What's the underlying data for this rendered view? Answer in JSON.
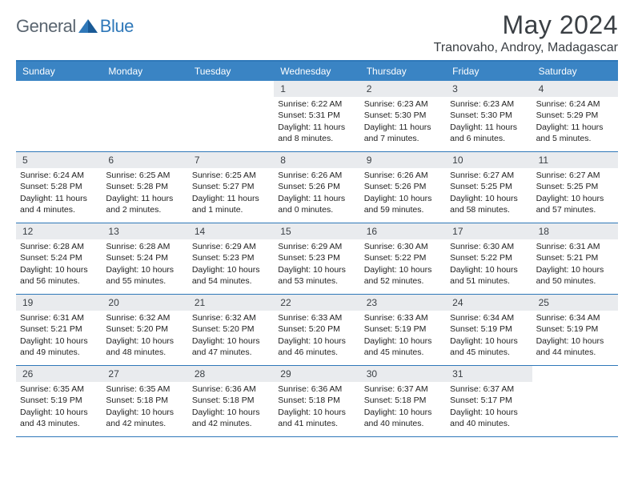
{
  "brand": {
    "general": "General",
    "blue": "Blue"
  },
  "title": "May 2024",
  "location": "Tranovaho, Androy, Madagascar",
  "dow": [
    "Sunday",
    "Monday",
    "Tuesday",
    "Wednesday",
    "Thursday",
    "Friday",
    "Saturday"
  ],
  "colors": {
    "accent": "#2f78b9",
    "header_bg": "#3a84c4",
    "daynum_bg": "#e9ebee",
    "text": "#3a3f44"
  },
  "weeks": [
    [
      {
        "blank": true
      },
      {
        "blank": true
      },
      {
        "blank": true
      },
      {
        "day": "1",
        "sunrise": "Sunrise: 6:22 AM",
        "sunset": "Sunset: 5:31 PM",
        "daylight": "Daylight: 11 hours and 8 minutes."
      },
      {
        "day": "2",
        "sunrise": "Sunrise: 6:23 AM",
        "sunset": "Sunset: 5:30 PM",
        "daylight": "Daylight: 11 hours and 7 minutes."
      },
      {
        "day": "3",
        "sunrise": "Sunrise: 6:23 AM",
        "sunset": "Sunset: 5:30 PM",
        "daylight": "Daylight: 11 hours and 6 minutes."
      },
      {
        "day": "4",
        "sunrise": "Sunrise: 6:24 AM",
        "sunset": "Sunset: 5:29 PM",
        "daylight": "Daylight: 11 hours and 5 minutes."
      }
    ],
    [
      {
        "day": "5",
        "sunrise": "Sunrise: 6:24 AM",
        "sunset": "Sunset: 5:28 PM",
        "daylight": "Daylight: 11 hours and 4 minutes."
      },
      {
        "day": "6",
        "sunrise": "Sunrise: 6:25 AM",
        "sunset": "Sunset: 5:28 PM",
        "daylight": "Daylight: 11 hours and 2 minutes."
      },
      {
        "day": "7",
        "sunrise": "Sunrise: 6:25 AM",
        "sunset": "Sunset: 5:27 PM",
        "daylight": "Daylight: 11 hours and 1 minute."
      },
      {
        "day": "8",
        "sunrise": "Sunrise: 6:26 AM",
        "sunset": "Sunset: 5:26 PM",
        "daylight": "Daylight: 11 hours and 0 minutes."
      },
      {
        "day": "9",
        "sunrise": "Sunrise: 6:26 AM",
        "sunset": "Sunset: 5:26 PM",
        "daylight": "Daylight: 10 hours and 59 minutes."
      },
      {
        "day": "10",
        "sunrise": "Sunrise: 6:27 AM",
        "sunset": "Sunset: 5:25 PM",
        "daylight": "Daylight: 10 hours and 58 minutes."
      },
      {
        "day": "11",
        "sunrise": "Sunrise: 6:27 AM",
        "sunset": "Sunset: 5:25 PM",
        "daylight": "Daylight: 10 hours and 57 minutes."
      }
    ],
    [
      {
        "day": "12",
        "sunrise": "Sunrise: 6:28 AM",
        "sunset": "Sunset: 5:24 PM",
        "daylight": "Daylight: 10 hours and 56 minutes."
      },
      {
        "day": "13",
        "sunrise": "Sunrise: 6:28 AM",
        "sunset": "Sunset: 5:24 PM",
        "daylight": "Daylight: 10 hours and 55 minutes."
      },
      {
        "day": "14",
        "sunrise": "Sunrise: 6:29 AM",
        "sunset": "Sunset: 5:23 PM",
        "daylight": "Daylight: 10 hours and 54 minutes."
      },
      {
        "day": "15",
        "sunrise": "Sunrise: 6:29 AM",
        "sunset": "Sunset: 5:23 PM",
        "daylight": "Daylight: 10 hours and 53 minutes."
      },
      {
        "day": "16",
        "sunrise": "Sunrise: 6:30 AM",
        "sunset": "Sunset: 5:22 PM",
        "daylight": "Daylight: 10 hours and 52 minutes."
      },
      {
        "day": "17",
        "sunrise": "Sunrise: 6:30 AM",
        "sunset": "Sunset: 5:22 PM",
        "daylight": "Daylight: 10 hours and 51 minutes."
      },
      {
        "day": "18",
        "sunrise": "Sunrise: 6:31 AM",
        "sunset": "Sunset: 5:21 PM",
        "daylight": "Daylight: 10 hours and 50 minutes."
      }
    ],
    [
      {
        "day": "19",
        "sunrise": "Sunrise: 6:31 AM",
        "sunset": "Sunset: 5:21 PM",
        "daylight": "Daylight: 10 hours and 49 minutes."
      },
      {
        "day": "20",
        "sunrise": "Sunrise: 6:32 AM",
        "sunset": "Sunset: 5:20 PM",
        "daylight": "Daylight: 10 hours and 48 minutes."
      },
      {
        "day": "21",
        "sunrise": "Sunrise: 6:32 AM",
        "sunset": "Sunset: 5:20 PM",
        "daylight": "Daylight: 10 hours and 47 minutes."
      },
      {
        "day": "22",
        "sunrise": "Sunrise: 6:33 AM",
        "sunset": "Sunset: 5:20 PM",
        "daylight": "Daylight: 10 hours and 46 minutes."
      },
      {
        "day": "23",
        "sunrise": "Sunrise: 6:33 AM",
        "sunset": "Sunset: 5:19 PM",
        "daylight": "Daylight: 10 hours and 45 minutes."
      },
      {
        "day": "24",
        "sunrise": "Sunrise: 6:34 AM",
        "sunset": "Sunset: 5:19 PM",
        "daylight": "Daylight: 10 hours and 45 minutes."
      },
      {
        "day": "25",
        "sunrise": "Sunrise: 6:34 AM",
        "sunset": "Sunset: 5:19 PM",
        "daylight": "Daylight: 10 hours and 44 minutes."
      }
    ],
    [
      {
        "day": "26",
        "sunrise": "Sunrise: 6:35 AM",
        "sunset": "Sunset: 5:19 PM",
        "daylight": "Daylight: 10 hours and 43 minutes."
      },
      {
        "day": "27",
        "sunrise": "Sunrise: 6:35 AM",
        "sunset": "Sunset: 5:18 PM",
        "daylight": "Daylight: 10 hours and 42 minutes."
      },
      {
        "day": "28",
        "sunrise": "Sunrise: 6:36 AM",
        "sunset": "Sunset: 5:18 PM",
        "daylight": "Daylight: 10 hours and 42 minutes."
      },
      {
        "day": "29",
        "sunrise": "Sunrise: 6:36 AM",
        "sunset": "Sunset: 5:18 PM",
        "daylight": "Daylight: 10 hours and 41 minutes."
      },
      {
        "day": "30",
        "sunrise": "Sunrise: 6:37 AM",
        "sunset": "Sunset: 5:18 PM",
        "daylight": "Daylight: 10 hours and 40 minutes."
      },
      {
        "day": "31",
        "sunrise": "Sunrise: 6:37 AM",
        "sunset": "Sunset: 5:17 PM",
        "daylight": "Daylight: 10 hours and 40 minutes."
      },
      {
        "blank": true
      }
    ]
  ]
}
